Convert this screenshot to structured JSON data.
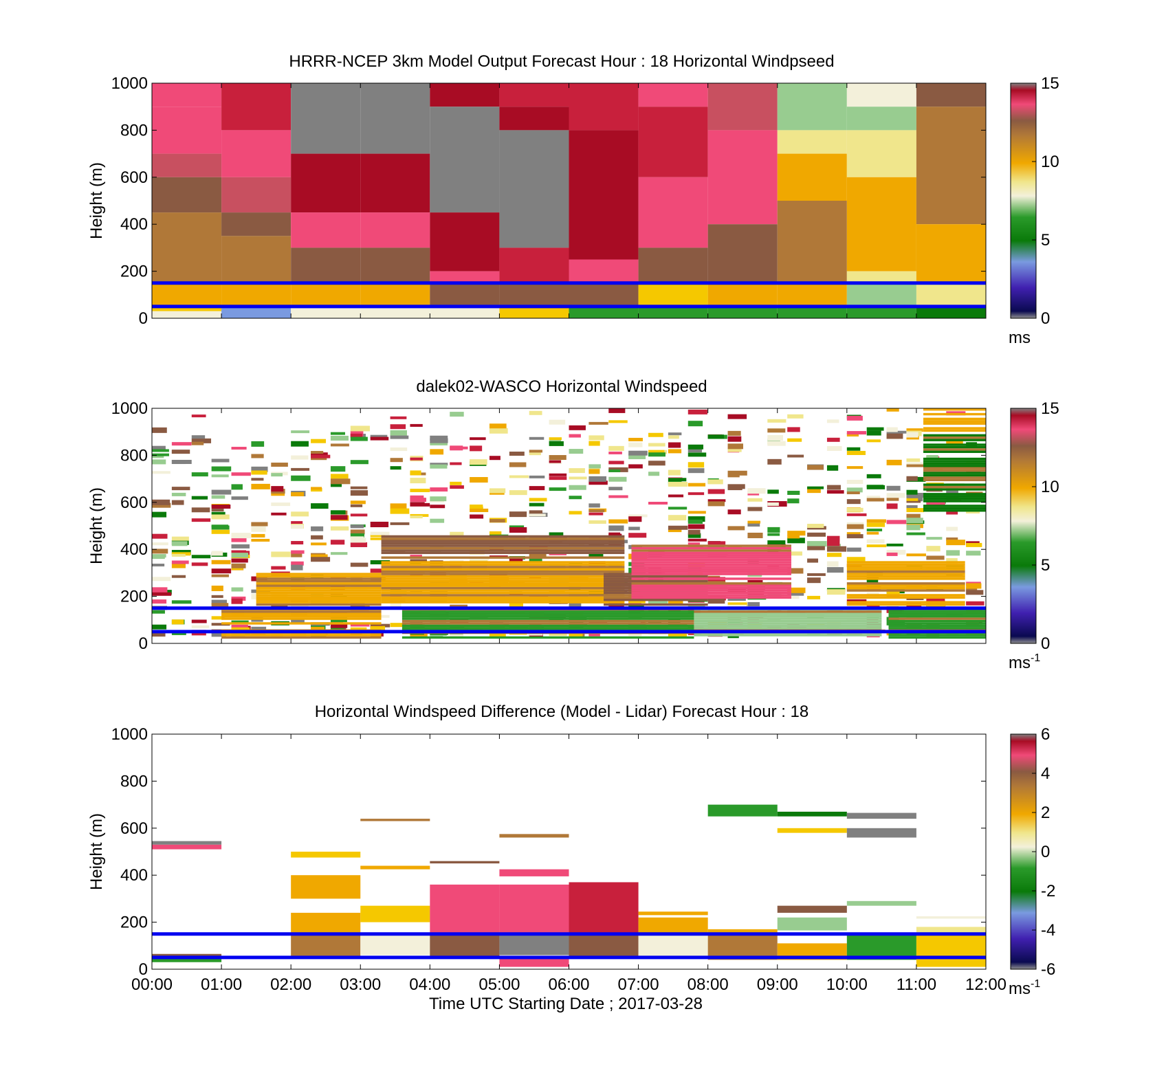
{
  "figure": {
    "xlabel": "Time UTC  Starting Date ; 2017-03-28",
    "xticks": [
      "00:00",
      "01:00",
      "02:00",
      "03:00",
      "04:00",
      "05:00",
      "06:00",
      "07:00",
      "08:00",
      "09:00",
      "10:00",
      "11:00",
      "12:00"
    ]
  },
  "colors": {
    "gray": "#808080",
    "crimson": "#a80c24",
    "red": "#c8203c",
    "pink": "#f04a78",
    "rose": "#c85060",
    "brown": "#8a5a42",
    "tan": "#b07838",
    "orange": "#f0a800",
    "yellow": "#f5c800",
    "paleyellow": "#f0e68c",
    "cream": "#f3f0da",
    "lightgreen": "#98cc90",
    "green": "#2a9a2a",
    "darkgreen": "#0a7a0a",
    "blue": "#0000f0",
    "lightblue": "#7a9ae0",
    "purple": "#4020b0"
  },
  "chart_data": [
    {
      "type": "heatmap",
      "title": "HRRR-NCEP 3km Model Output   Forecast Hour : 18 Horizontal Windpseed",
      "ylabel": "Height (m)",
      "ylim": [
        0,
        1000
      ],
      "yticks": [
        "0",
        "200",
        "400",
        "600",
        "800",
        "1000"
      ],
      "colorbar": {
        "ticks": [
          "0",
          "5",
          "10",
          "15"
        ],
        "range": [
          0,
          15
        ],
        "unit": "ms",
        "unit_sup": ""
      },
      "reference_lines_m": [
        150,
        50
      ],
      "columns": [
        {
          "hour": "00:00",
          "profile": [
            {
              "base": 900,
              "c": "pink"
            },
            {
              "base": 700,
              "c": "pink"
            },
            {
              "base": 600,
              "c": "rose"
            },
            {
              "base": 450,
              "c": "brown"
            },
            {
              "base": 150,
              "c": "tan"
            },
            {
              "base": 50,
              "c": "orange"
            },
            {
              "base": 30,
              "c": "yellow"
            },
            {
              "base": 0,
              "c": "cream"
            }
          ]
        },
        {
          "hour": "01:00",
          "profile": [
            {
              "base": 800,
              "c": "red"
            },
            {
              "base": 600,
              "c": "pink"
            },
            {
              "base": 450,
              "c": "rose"
            },
            {
              "base": 350,
              "c": "brown"
            },
            {
              "base": 150,
              "c": "tan"
            },
            {
              "base": 50,
              "c": "orange"
            },
            {
              "base": 0,
              "c": "lightblue"
            }
          ]
        },
        {
          "hour": "02:00",
          "profile": [
            {
              "base": 700,
              "c": "gray"
            },
            {
              "base": 450,
              "c": "crimson"
            },
            {
              "base": 300,
              "c": "pink"
            },
            {
              "base": 150,
              "c": "brown"
            },
            {
              "base": 50,
              "c": "orange"
            },
            {
              "base": 0,
              "c": "cream"
            }
          ]
        },
        {
          "hour": "03:00",
          "profile": [
            {
              "base": 700,
              "c": "gray"
            },
            {
              "base": 450,
              "c": "crimson"
            },
            {
              "base": 300,
              "c": "pink"
            },
            {
              "base": 150,
              "c": "brown"
            },
            {
              "base": 50,
              "c": "orange"
            },
            {
              "base": 0,
              "c": "cream"
            }
          ]
        },
        {
          "hour": "04:00",
          "profile": [
            {
              "base": 900,
              "c": "crimson"
            },
            {
              "base": 450,
              "c": "gray"
            },
            {
              "base": 200,
              "c": "crimson"
            },
            {
              "base": 150,
              "c": "pink"
            },
            {
              "base": 50,
              "c": "brown"
            },
            {
              "base": 0,
              "c": "cream"
            }
          ]
        },
        {
          "hour": "05:00",
          "profile": [
            {
              "base": 900,
              "c": "red"
            },
            {
              "base": 800,
              "c": "crimson"
            },
            {
              "base": 300,
              "c": "gray"
            },
            {
              "base": 150,
              "c": "red"
            },
            {
              "base": 50,
              "c": "brown"
            },
            {
              "base": 0,
              "c": "yellow"
            }
          ]
        },
        {
          "hour": "06:00",
          "profile": [
            {
              "base": 800,
              "c": "red"
            },
            {
              "base": 250,
              "c": "crimson"
            },
            {
              "base": 150,
              "c": "pink"
            },
            {
              "base": 50,
              "c": "brown"
            },
            {
              "base": 0,
              "c": "green"
            }
          ]
        },
        {
          "hour": "07:00",
          "profile": [
            {
              "base": 900,
              "c": "pink"
            },
            {
              "base": 600,
              "c": "red"
            },
            {
              "base": 300,
              "c": "pink"
            },
            {
              "base": 150,
              "c": "brown"
            },
            {
              "base": 50,
              "c": "yellow"
            },
            {
              "base": 0,
              "c": "green"
            }
          ]
        },
        {
          "hour": "08:00",
          "profile": [
            {
              "base": 800,
              "c": "rose"
            },
            {
              "base": 400,
              "c": "pink"
            },
            {
              "base": 150,
              "c": "brown"
            },
            {
              "base": 50,
              "c": "orange"
            },
            {
              "base": 0,
              "c": "green"
            }
          ]
        },
        {
          "hour": "09:00",
          "profile": [
            {
              "base": 800,
              "c": "lightgreen"
            },
            {
              "base": 700,
              "c": "paleyellow"
            },
            {
              "base": 500,
              "c": "orange"
            },
            {
              "base": 150,
              "c": "tan"
            },
            {
              "base": 50,
              "c": "orange"
            },
            {
              "base": 0,
              "c": "green"
            }
          ]
        },
        {
          "hour": "10:00",
          "profile": [
            {
              "base": 900,
              "c": "cream"
            },
            {
              "base": 800,
              "c": "lightgreen"
            },
            {
              "base": 600,
              "c": "paleyellow"
            },
            {
              "base": 200,
              "c": "orange"
            },
            {
              "base": 150,
              "c": "paleyellow"
            },
            {
              "base": 50,
              "c": "lightgreen"
            },
            {
              "base": 0,
              "c": "green"
            }
          ]
        },
        {
          "hour": "11:00",
          "profile": [
            {
              "base": 900,
              "c": "brown"
            },
            {
              "base": 400,
              "c": "tan"
            },
            {
              "base": 150,
              "c": "orange"
            },
            {
              "base": 50,
              "c": "paleyellow"
            },
            {
              "base": 0,
              "c": "darkgreen"
            }
          ]
        }
      ]
    },
    {
      "type": "heatmap",
      "title": "dalek02-WASCO  Horizontal Windspeed",
      "ylabel": "Height (m)",
      "ylim": [
        0,
        1000
      ],
      "yticks": [
        "0",
        "200",
        "400",
        "600",
        "800",
        "1000"
      ],
      "colorbar": {
        "ticks": [
          "0",
          "5",
          "10",
          "15"
        ],
        "range": [
          0,
          15
        ],
        "unit": "ms",
        "unit_sup": "-1"
      },
      "reference_lines_m": [
        150,
        50
      ],
      "scatter_bins": {
        "start": "00:00",
        "end": "12:00",
        "bins": 42
      },
      "blocks": [
        {
          "hours": [
            3.3,
            6.8
          ],
          "range": [
            160,
            370
          ],
          "c": "orange"
        },
        {
          "hours": [
            3.3,
            6.8
          ],
          "range": [
            380,
            460
          ],
          "c": "brown"
        },
        {
          "hours": [
            1.5,
            3.3
          ],
          "range": [
            160,
            300
          ],
          "c": "orange"
        },
        {
          "hours": [
            3.6,
            7.8
          ],
          "range": [
            20,
            150
          ],
          "c": "green"
        },
        {
          "hours": [
            1.0,
            3.3
          ],
          "range": [
            20,
            150
          ],
          "c": "orange"
        },
        {
          "hours": [
            6.5,
            8.0
          ],
          "range": [
            160,
            300
          ],
          "c": "brown"
        },
        {
          "hours": [
            6.9,
            9.2
          ],
          "range": [
            180,
            420
          ],
          "c": "pink"
        },
        {
          "hours": [
            7.8,
            10.5
          ],
          "range": [
            20,
            150
          ],
          "c": "lightgreen"
        },
        {
          "hours": [
            10.0,
            11.7
          ],
          "range": [
            160,
            350
          ],
          "c": "orange"
        },
        {
          "hours": [
            11.1,
            12.0
          ],
          "range": [
            560,
            900
          ],
          "c": "darkgreen"
        },
        {
          "hours": [
            11.1,
            12.0
          ],
          "range": [
            900,
            1000
          ],
          "c": "orange"
        },
        {
          "hours": [
            10.6,
            12.0
          ],
          "range": [
            20,
            150
          ],
          "c": "green"
        }
      ]
    },
    {
      "type": "heatmap",
      "title": "Horizontal Windspeed Difference (Model - Lidar) Forecast Hour : 18",
      "ylabel": "Height (m)",
      "ylim": [
        0,
        1000
      ],
      "yticks": [
        "0",
        "200",
        "400",
        "600",
        "800",
        "1000"
      ],
      "colorbar": {
        "ticks": [
          "-6",
          "-4",
          "-2",
          "0",
          "2",
          "4",
          "6"
        ],
        "range": [
          -6,
          6
        ],
        "unit": "ms",
        "unit_sup": "-1"
      },
      "reference_lines_m": [
        150,
        50
      ],
      "segments": [
        {
          "hour": "00:00",
          "range": [
            510,
            530
          ],
          "c": "pink"
        },
        {
          "hour": "00:00",
          "range": [
            530,
            545
          ],
          "c": "gray"
        },
        {
          "hour": "00:00",
          "range": [
            30,
            55
          ],
          "c": "green"
        },
        {
          "hour": "00:00",
          "range": [
            55,
            65
          ],
          "c": "brown"
        },
        {
          "hour": "02:00",
          "range": [
            475,
            500
          ],
          "c": "yellow"
        },
        {
          "hour": "02:00",
          "range": [
            300,
            400
          ],
          "c": "orange"
        },
        {
          "hour": "02:00",
          "range": [
            150,
            240
          ],
          "c": "orange"
        },
        {
          "hour": "02:00",
          "range": [
            50,
            150
          ],
          "c": "tan"
        },
        {
          "hour": "03:00",
          "range": [
            630,
            640
          ],
          "c": "tan"
        },
        {
          "hour": "03:00",
          "range": [
            425,
            440
          ],
          "c": "orange"
        },
        {
          "hour": "03:00",
          "range": [
            200,
            270
          ],
          "c": "yellow"
        },
        {
          "hour": "03:00",
          "range": [
            60,
            150
          ],
          "c": "cream"
        },
        {
          "hour": "04:00",
          "range": [
            450,
            460
          ],
          "c": "brown"
        },
        {
          "hour": "04:00",
          "range": [
            150,
            360
          ],
          "c": "pink"
        },
        {
          "hour": "04:00",
          "range": [
            50,
            150
          ],
          "c": "brown"
        },
        {
          "hour": "05:00",
          "range": [
            560,
            575
          ],
          "c": "tan"
        },
        {
          "hour": "05:00",
          "range": [
            395,
            425
          ],
          "c": "pink"
        },
        {
          "hour": "05:00",
          "range": [
            150,
            360
          ],
          "c": "pink"
        },
        {
          "hour": "05:00",
          "range": [
            60,
            150
          ],
          "c": "gray"
        },
        {
          "hour": "05:00",
          "range": [
            10,
            50
          ],
          "c": "pink"
        },
        {
          "hour": "06:00",
          "range": [
            150,
            370
          ],
          "c": "red"
        },
        {
          "hour": "06:00",
          "range": [
            50,
            150
          ],
          "c": "brown"
        },
        {
          "hour": "07:00",
          "range": [
            230,
            245
          ],
          "c": "orange"
        },
        {
          "hour": "07:00",
          "range": [
            150,
            220
          ],
          "c": "orange"
        },
        {
          "hour": "07:00",
          "range": [
            50,
            150
          ],
          "c": "cream"
        },
        {
          "hour": "08:00",
          "range": [
            650,
            700
          ],
          "c": "green"
        },
        {
          "hour": "08:00",
          "range": [
            150,
            170
          ],
          "c": "orange"
        },
        {
          "hour": "08:00",
          "range": [
            40,
            150
          ],
          "c": "tan"
        },
        {
          "hour": "09:00",
          "range": [
            650,
            670
          ],
          "c": "darkgreen"
        },
        {
          "hour": "09:00",
          "range": [
            580,
            600
          ],
          "c": "yellow"
        },
        {
          "hour": "09:00",
          "range": [
            240,
            270
          ],
          "c": "brown"
        },
        {
          "hour": "09:00",
          "range": [
            165,
            220
          ],
          "c": "lightgreen"
        },
        {
          "hour": "09:00",
          "range": [
            40,
            110
          ],
          "c": "orange"
        },
        {
          "hour": "10:00",
          "range": [
            640,
            665
          ],
          "c": "gray"
        },
        {
          "hour": "10:00",
          "range": [
            560,
            600
          ],
          "c": "gray"
        },
        {
          "hour": "10:00",
          "range": [
            270,
            290
          ],
          "c": "lightgreen"
        },
        {
          "hour": "10:00",
          "range": [
            40,
            150
          ],
          "c": "green"
        },
        {
          "hour": "11:00",
          "range": [
            215,
            225
          ],
          "c": "cream"
        },
        {
          "hour": "11:00",
          "range": [
            150,
            180
          ],
          "c": "paleyellow"
        },
        {
          "hour": "11:00",
          "range": [
            10,
            150
          ],
          "c": "yellow"
        }
      ]
    }
  ]
}
